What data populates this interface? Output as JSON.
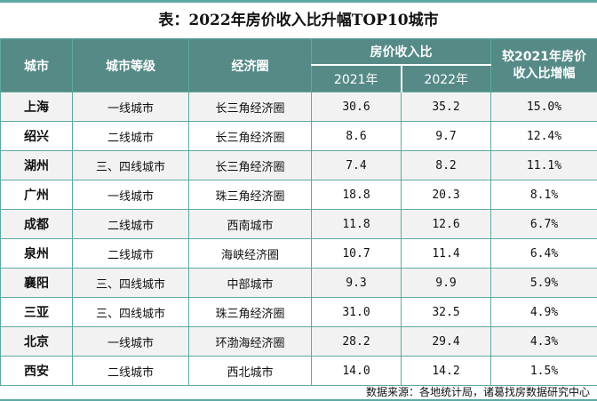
{
  "title": "表：2022年房价收入比升幅TOP10城市",
  "headers": {
    "city": "城市",
    "tier": "城市等级",
    "region": "经济圈",
    "ratio": "房价收入比",
    "y2021": "2021年",
    "y2022": "2022年",
    "growth": "较2021年房价收入比增幅"
  },
  "rows": [
    {
      "city": "上海",
      "tier": "一线城市",
      "region": "长三角经济圈",
      "y2021": "30.6",
      "y2022": "35.2",
      "growth": "15.0%"
    },
    {
      "city": "绍兴",
      "tier": "二线城市",
      "region": "长三角经济圈",
      "y2021": "8.6",
      "y2022": "9.7",
      "growth": "12.4%"
    },
    {
      "city": "湖州",
      "tier": "三、四线城市",
      "region": "长三角经济圈",
      "y2021": "7.4",
      "y2022": "8.2",
      "growth": "11.1%"
    },
    {
      "city": "广州",
      "tier": "一线城市",
      "region": "珠三角经济圈",
      "y2021": "18.8",
      "y2022": "20.3",
      "growth": "8.1%"
    },
    {
      "city": "成都",
      "tier": "二线城市",
      "region": "西南城市",
      "y2021": "11.8",
      "y2022": "12.6",
      "growth": "6.7%"
    },
    {
      "city": "泉州",
      "tier": "二线城市",
      "region": "海峡经济圈",
      "y2021": "10.7",
      "y2022": "11.4",
      "growth": "6.4%"
    },
    {
      "city": "襄阳",
      "tier": "三、四线城市",
      "region": "中部城市",
      "y2021": "9.3",
      "y2022": "9.9",
      "growth": "5.9%"
    },
    {
      "city": "三亚",
      "tier": "三、四线城市",
      "region": "珠三角经济圈",
      "y2021": "31.0",
      "y2022": "32.5",
      "growth": "4.9%"
    },
    {
      "city": "北京",
      "tier": "一线城市",
      "region": "环渤海经济圈",
      "y2021": "28.2",
      "y2022": "29.4",
      "growth": "4.3%"
    },
    {
      "city": "西安",
      "tier": "二线城市",
      "region": "西北城市",
      "y2021": "14.0",
      "y2022": "14.2",
      "growth": "1.5%"
    }
  ],
  "footer": "数据来源：各地统计局，诸葛找房数据研究中心",
  "colors": {
    "header_bg": "#558a87",
    "border": "#5ea9a2",
    "stripe": "#f2f2f2"
  }
}
